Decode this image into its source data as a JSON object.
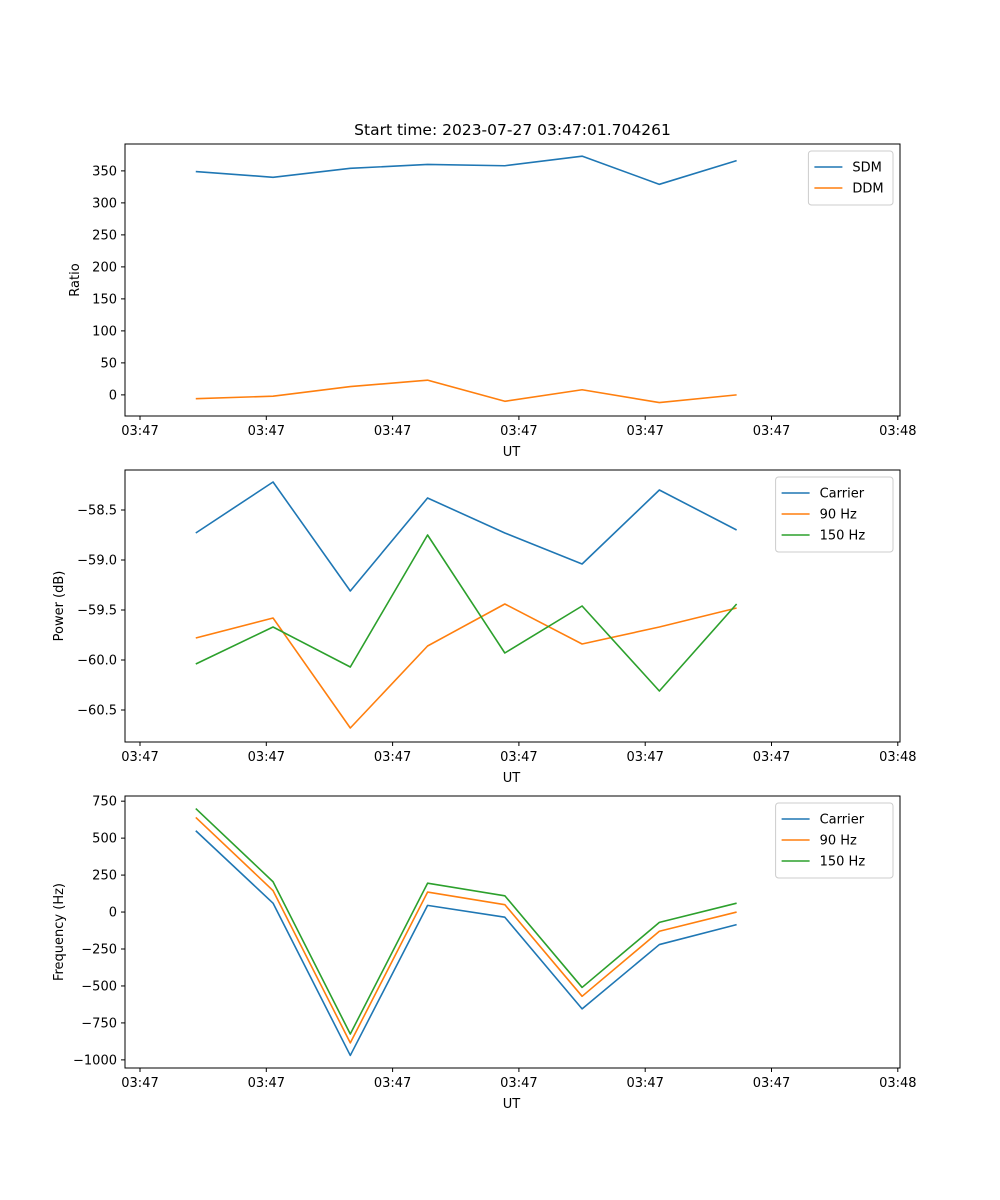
{
  "chart_data": [
    {
      "type": "line",
      "title": "Start time: 2023-07-27 03:47:01.704261",
      "xlabel": "UT",
      "ylabel": "Ratio",
      "xticks": [
        "03:47",
        "03:47",
        "03:47",
        "03:47",
        "03:47",
        "03:47",
        "03:48"
      ],
      "xlim": [
        -0.6,
        5.97
      ],
      "ylim": [
        -33,
        392
      ],
      "yticks": [
        0,
        50,
        100,
        150,
        200,
        250,
        300,
        350
      ],
      "x": [
        0,
        0.655,
        1.31,
        1.965,
        2.62,
        3.275,
        3.93,
        4.585
      ],
      "series": [
        {
          "name": "SDM",
          "color": "#1f77b4",
          "values": [
            349,
            340,
            354,
            360,
            358,
            373,
            329,
            366
          ]
        },
        {
          "name": "DDM",
          "color": "#ff7f0e",
          "values": [
            -6,
            -2,
            13,
            23,
            -10,
            8,
            -12,
            0
          ]
        }
      ],
      "legend": "top-right"
    },
    {
      "type": "line",
      "title": "",
      "xlabel": "UT",
      "ylabel": "Power (dB)",
      "xticks": [
        "03:47",
        "03:47",
        "03:47",
        "03:47",
        "03:47",
        "03:47",
        "03:48"
      ],
      "xlim": [
        -0.6,
        5.97
      ],
      "ylim": [
        -60.82,
        -58.1
      ],
      "yticks": [
        -60.5,
        -60.0,
        -59.5,
        -59.0,
        -58.5
      ],
      "x": [
        0,
        0.655,
        1.31,
        1.965,
        2.62,
        3.275,
        3.93,
        4.585
      ],
      "series": [
        {
          "name": "Carrier",
          "color": "#1f77b4",
          "values": [
            -58.73,
            -58.22,
            -59.31,
            -58.38,
            -58.73,
            -59.04,
            -58.3,
            -58.7
          ]
        },
        {
          "name": "90 Hz",
          "color": "#ff7f0e",
          "values": [
            -59.78,
            -59.58,
            -60.68,
            -59.86,
            -59.44,
            -59.84,
            -59.67,
            -59.48
          ]
        },
        {
          "name": "150 Hz",
          "color": "#2ca02c",
          "values": [
            -60.04,
            -59.67,
            -60.07,
            -58.75,
            -59.93,
            -59.46,
            -60.31,
            -59.44
          ]
        }
      ],
      "legend": "top-right"
    },
    {
      "type": "line",
      "title": "",
      "xlabel": "UT",
      "ylabel": "Frequency (Hz)",
      "xticks": [
        "03:47",
        "03:47",
        "03:47",
        "03:47",
        "03:47",
        "03:47",
        "03:48"
      ],
      "xlim": [
        -0.6,
        5.97
      ],
      "ylim": [
        -1055,
        785
      ],
      "yticks": [
        -1000,
        -750,
        -500,
        -250,
        0,
        250,
        500,
        750
      ],
      "x": [
        0,
        0.655,
        1.31,
        1.965,
        2.62,
        3.275,
        3.93,
        4.585
      ],
      "series": [
        {
          "name": "Carrier",
          "color": "#1f77b4",
          "values": [
            550,
            60,
            -970,
            45,
            -35,
            -655,
            -220,
            -85
          ]
        },
        {
          "name": "90 Hz",
          "color": "#ff7f0e",
          "values": [
            640,
            145,
            -885,
            135,
            50,
            -570,
            -130,
            0
          ]
        },
        {
          "name": "150 Hz",
          "color": "#2ca02c",
          "values": [
            700,
            205,
            -825,
            195,
            110,
            -510,
            -70,
            60
          ]
        }
      ],
      "legend": "top-right"
    }
  ]
}
